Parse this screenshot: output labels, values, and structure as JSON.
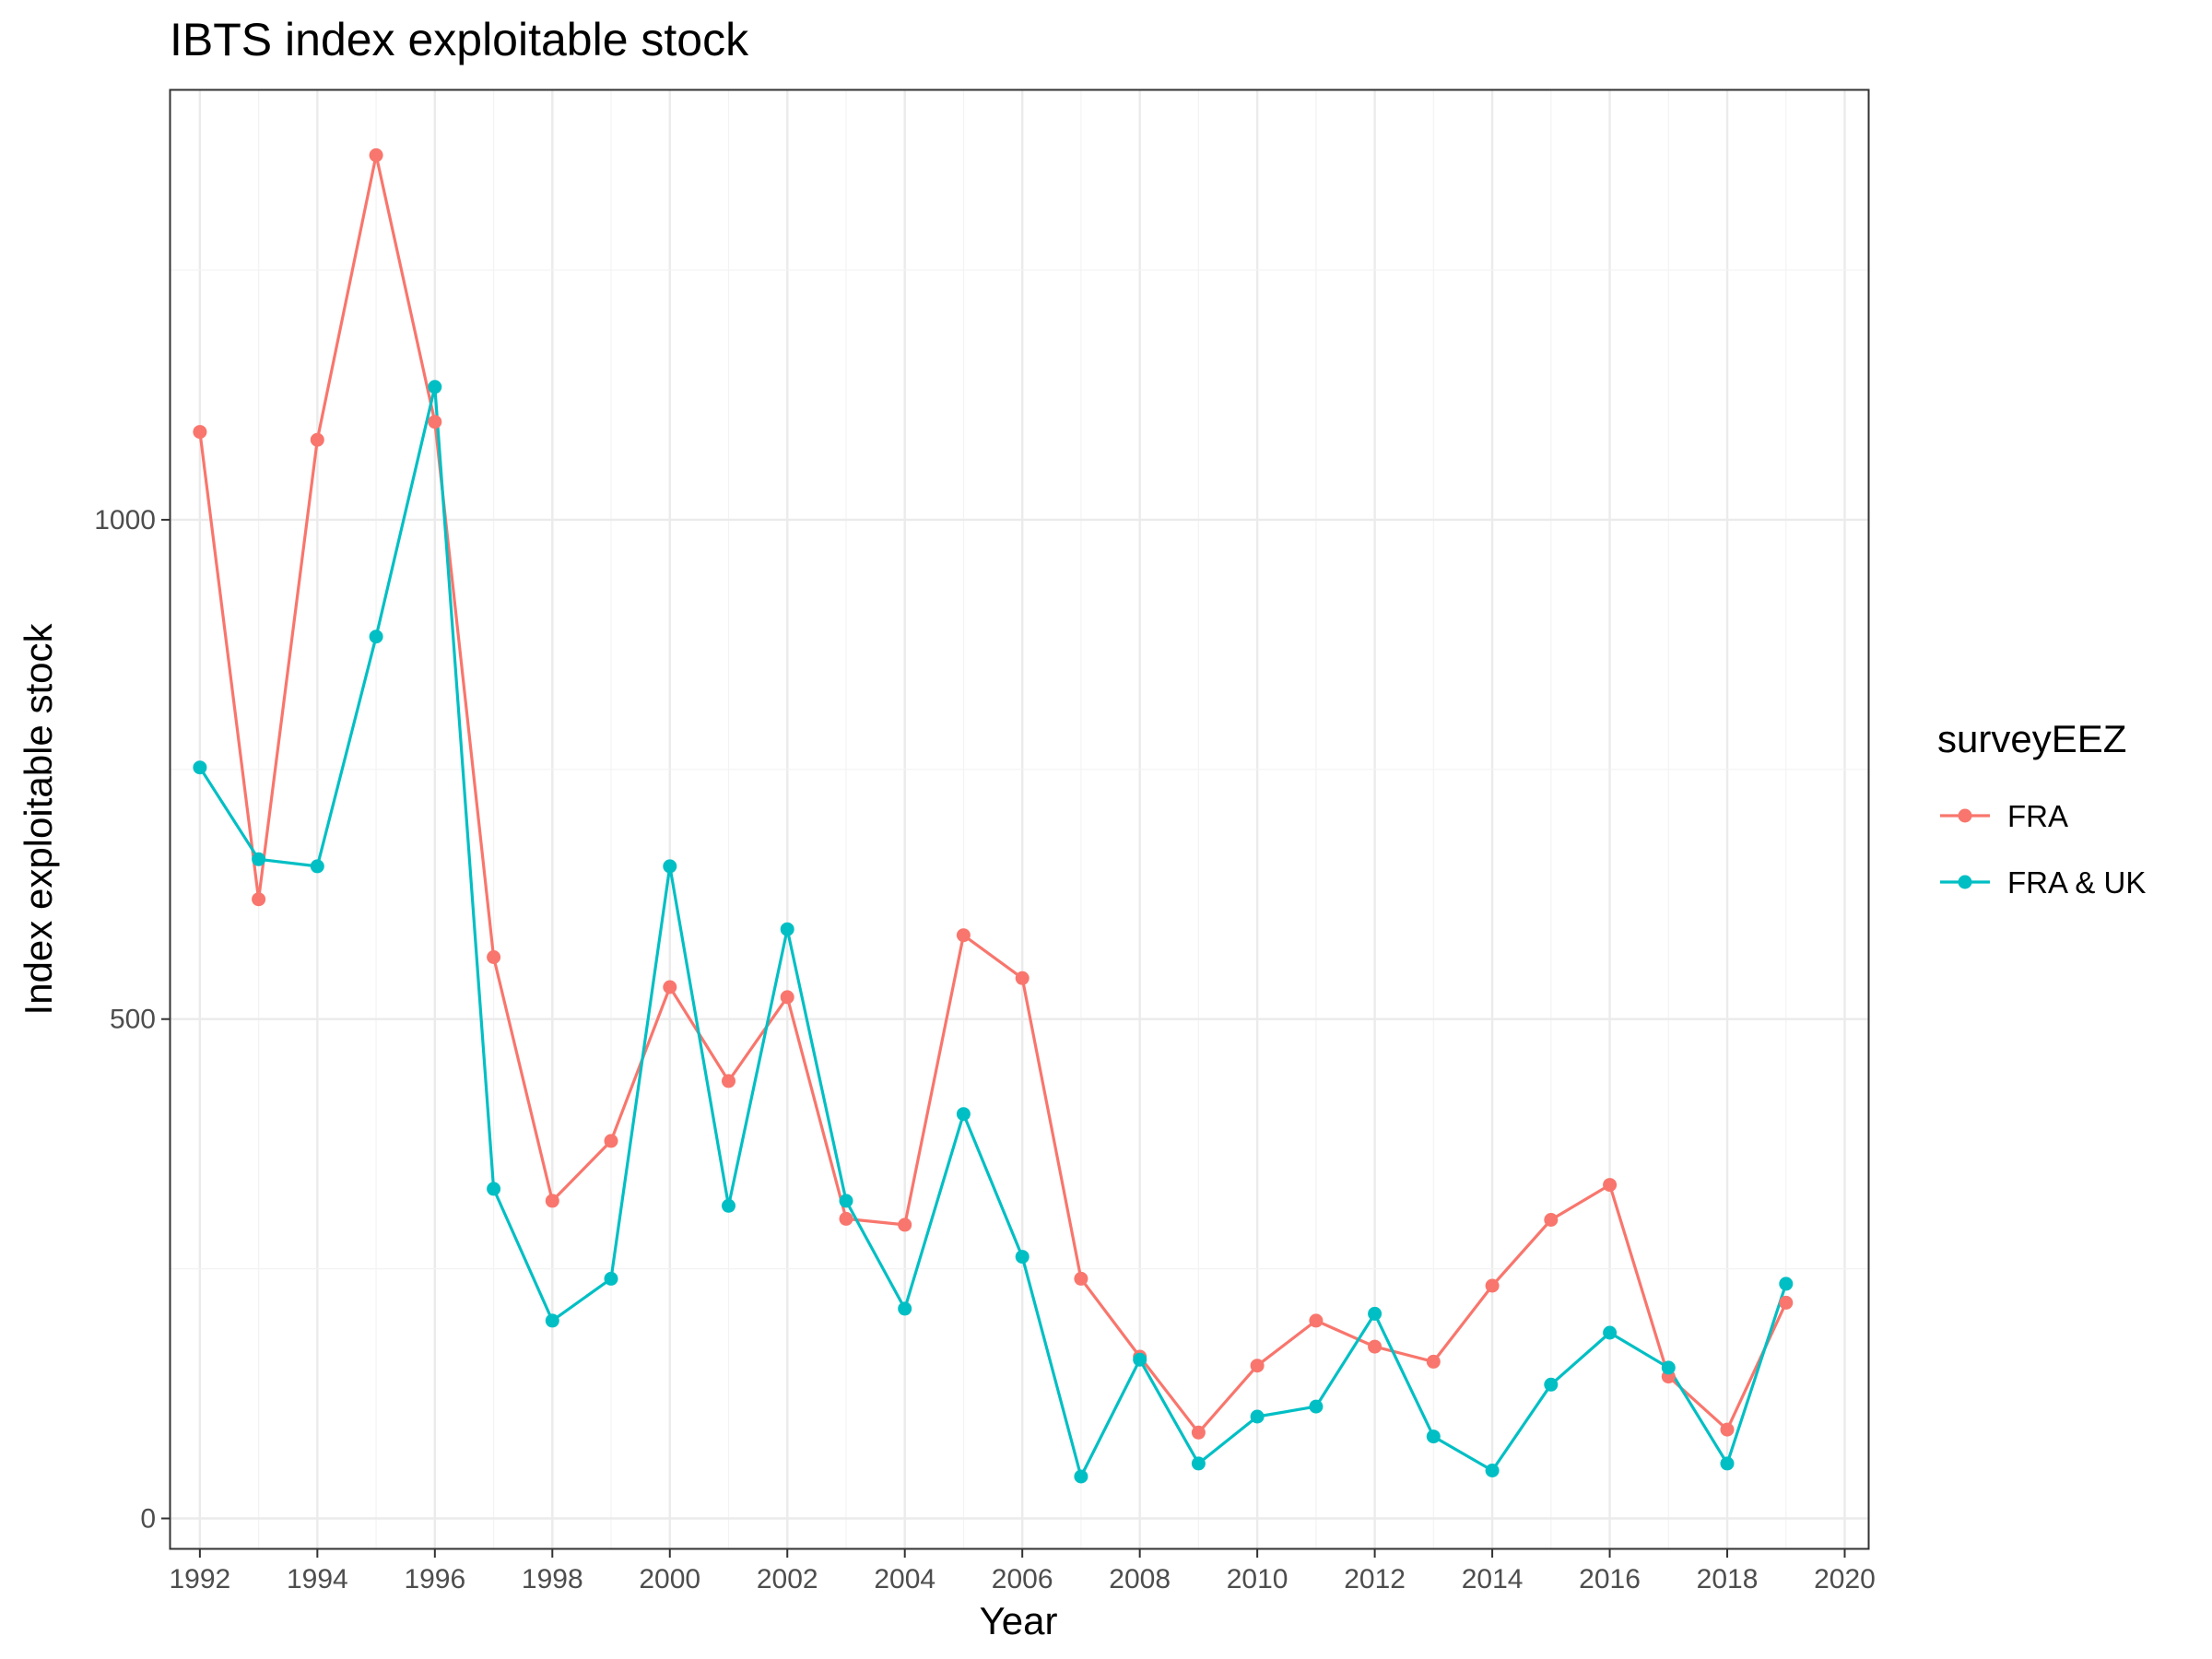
{
  "chart_data": {
    "type": "line",
    "title": "IBTS index exploitable stock",
    "xlabel": "Year",
    "ylabel": "Index exploitable stock",
    "xlim": [
      1991.5,
      2020.4
    ],
    "ylim": [
      -30,
      1430
    ],
    "x_ticks": [
      1992,
      1994,
      1996,
      1998,
      2000,
      2002,
      2004,
      2006,
      2008,
      2010,
      2012,
      2014,
      2016,
      2018,
      2020
    ],
    "y_ticks": [
      0,
      500,
      1000
    ],
    "grid": true,
    "legend": {
      "title": "surveyEEZ",
      "position": "right"
    },
    "x": [
      1992,
      1993,
      1994,
      1995,
      1996,
      1997,
      1998,
      1999,
      2000,
      2001,
      2002,
      2003,
      2004,
      2005,
      2006,
      2007,
      2008,
      2009,
      2010,
      2011,
      2012,
      2013,
      2014,
      2015,
      2016,
      2017,
      2018,
      2019
    ],
    "series": [
      {
        "name": "FRA",
        "color": "#F8766D",
        "values": [
          1088,
          620,
          1080,
          1365,
          1098,
          562,
          318,
          378,
          532,
          438,
          522,
          300,
          294,
          584,
          541,
          240,
          162,
          86,
          153,
          198,
          172,
          157,
          233,
          299,
          334,
          142,
          89,
          216
        ]
      },
      {
        "name": "FRA & UK",
        "color": "#00BFC4",
        "values": [
          752,
          660,
          653,
          883,
          1133,
          330,
          198,
          240,
          653,
          313,
          590,
          318,
          210,
          405,
          262,
          42,
          159,
          55,
          102,
          112,
          205,
          82,
          48,
          134,
          186,
          151,
          55,
          235
        ]
      }
    ]
  }
}
